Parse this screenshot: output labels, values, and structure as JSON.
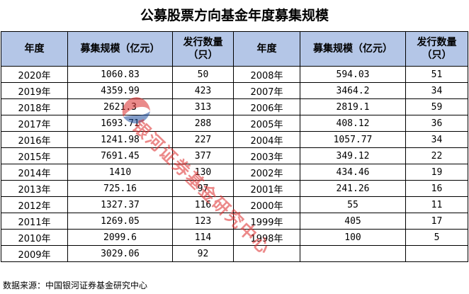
{
  "title": "公募股票方向基金年度募集规模",
  "headers": {
    "year": "年度",
    "scale": "募集规模（亿元）",
    "count": "发行数量（只）"
  },
  "rows": [
    {
      "year_left": "2020年",
      "scale_left": "1060.83",
      "count_left": "50",
      "year_right": "2008年",
      "scale_right": "594.03",
      "count_right": "51"
    },
    {
      "year_left": "2019年",
      "scale_left": "4359.99",
      "count_left": "423",
      "year_right": "2007年",
      "scale_right": "3464.2",
      "count_right": "34"
    },
    {
      "year_left": "2018年",
      "scale_left": "2621.3",
      "count_left": "313",
      "year_right": "2006年",
      "scale_right": "2819.1",
      "count_right": "59"
    },
    {
      "year_left": "2017年",
      "scale_left": "1693.71",
      "count_left": "288",
      "year_right": "2005年",
      "scale_right": "408.12",
      "count_right": "36"
    },
    {
      "year_left": "2016年",
      "scale_left": "1241.98",
      "count_left": "227",
      "year_right": "2004年",
      "scale_right": "1057.77",
      "count_right": "34"
    },
    {
      "year_left": "2015年",
      "scale_left": "7691.45",
      "count_left": "377",
      "year_right": "2003年",
      "scale_right": "349.12",
      "count_right": "22"
    },
    {
      "year_left": "2014年",
      "scale_left": "1410",
      "count_left": "130",
      "year_right": "2002年",
      "scale_right": "434.46",
      "count_right": "19"
    },
    {
      "year_left": "2013年",
      "scale_left": "725.16",
      "count_left": "97",
      "year_right": "2001年",
      "scale_right": "241.26",
      "count_right": "16"
    },
    {
      "year_left": "2012年",
      "scale_left": "1327.37",
      "count_left": "116",
      "year_right": "2000年",
      "scale_right": "55",
      "count_right": "11"
    },
    {
      "year_left": "2011年",
      "scale_left": "1269.05",
      "count_left": "123",
      "year_right": "1999年",
      "scale_right": "405",
      "count_right": "17"
    },
    {
      "year_left": "2010年",
      "scale_left": "2099.6",
      "count_left": "114",
      "year_right": "1998年",
      "scale_right": "100",
      "count_right": "5"
    },
    {
      "year_left": "2009年",
      "scale_left": "3029.06",
      "count_left": "92",
      "year_right": "",
      "scale_right": "",
      "count_right": ""
    }
  ],
  "source": "数据来源：中国银河证券基金研究中心",
  "watermark": {
    "text": "银河证券基金研究中心",
    "color": "#dc2828",
    "logo_colors": [
      "#d92b2b",
      "#1f4e9e"
    ]
  },
  "colors": {
    "header_bg": "#b4c6e7",
    "border": "#000000"
  }
}
